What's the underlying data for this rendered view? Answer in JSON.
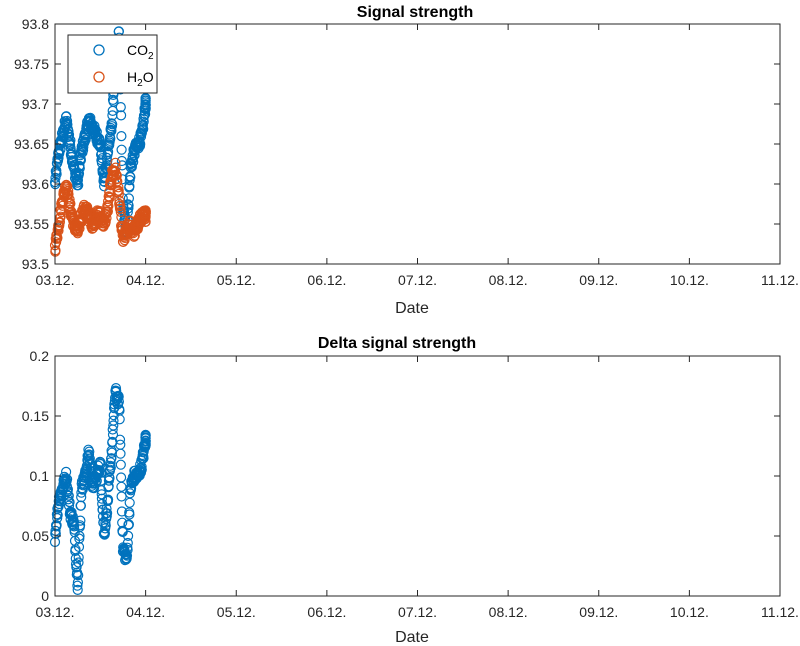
{
  "chart_data": [
    {
      "type": "scatter",
      "title": "Signal strength",
      "xlabel": "Date",
      "ylabel": "",
      "x_ticks": [
        "03.12.",
        "04.12.",
        "05.12.",
        "06.12.",
        "07.12.",
        "08.12.",
        "09.12.",
        "10.12.",
        "11.12."
      ],
      "xlim": [
        "03.12.",
        "11.12."
      ],
      "ylim": [
        93.5,
        93.8
      ],
      "y_ticks": [
        "93.5",
        "93.55",
        "93.6",
        "93.65",
        "93.7",
        "93.75",
        "93.8"
      ],
      "grid": false,
      "legend_position": "top-left",
      "colors": {
        "CO2": "#0072BD",
        "H2O": "#D95319"
      },
      "legend": [
        {
          "main": "CO",
          "sub": "2",
          "tail": ""
        },
        {
          "main": "H",
          "sub": "2",
          "tail": "O"
        }
      ],
      "series": [
        {
          "name": "CO2",
          "x": [
            "03.12. 00:00",
            "03.12. 01:00",
            "03.12. 02:00",
            "03.12. 03:00",
            "03.12. 04:00",
            "03.12. 05:00",
            "03.12. 06:00",
            "03.12. 07:00",
            "03.12. 08:00",
            "03.12. 09:00",
            "03.12. 10:00",
            "03.12. 11:00",
            "03.12. 12:00",
            "03.12. 13:00",
            "03.12. 14:00",
            "03.12. 15:00",
            "03.12. 16:00",
            "03.12. 17:00",
            "03.12. 18:00",
            "03.12. 19:00",
            "03.12. 20:00",
            "03.12. 21:00",
            "03.12. 22:00",
            "03.12. 23:00",
            "04.12. 00:00"
          ],
          "y": [
            93.6,
            93.64,
            93.66,
            93.68,
            93.65,
            93.62,
            93.6,
            93.64,
            93.66,
            93.68,
            93.67,
            93.66,
            93.65,
            93.6,
            93.64,
            93.67,
            93.75,
            93.79,
            93.57,
            93.54,
            93.62,
            93.64,
            93.65,
            93.66,
            93.7
          ]
        },
        {
          "name": "H2O",
          "x": [
            "03.12. 00:00",
            "03.12. 01:00",
            "03.12. 02:00",
            "03.12. 03:00",
            "03.12. 04:00",
            "03.12. 05:00",
            "03.12. 06:00",
            "03.12. 07:00",
            "03.12. 08:00",
            "03.12. 09:00",
            "03.12. 10:00",
            "03.12. 11:00",
            "03.12. 12:00",
            "03.12. 13:00",
            "03.12. 14:00",
            "03.12. 15:00",
            "03.12. 16:00",
            "03.12. 17:00",
            "03.12. 18:00",
            "03.12. 19:00",
            "03.12. 20:00",
            "03.12. 21:00",
            "03.12. 22:00",
            "03.12. 23:00",
            "04.12. 00:00"
          ],
          "y": [
            93.52,
            93.55,
            93.58,
            93.6,
            93.57,
            93.55,
            93.54,
            93.56,
            93.57,
            93.56,
            93.55,
            93.56,
            93.56,
            93.55,
            93.57,
            93.61,
            93.62,
            93.58,
            93.53,
            93.54,
            93.55,
            93.54,
            93.55,
            93.56,
            93.56
          ]
        }
      ]
    },
    {
      "type": "scatter",
      "title": "Delta signal strength",
      "xlabel": "Date",
      "ylabel": "",
      "x_ticks": [
        "03.12.",
        "04.12.",
        "05.12.",
        "06.12.",
        "07.12.",
        "08.12.",
        "09.12.",
        "10.12.",
        "11.12."
      ],
      "xlim": [
        "03.12.",
        "11.12."
      ],
      "ylim": [
        0,
        0.2
      ],
      "y_ticks": [
        "0",
        "0.05",
        "0.1",
        "0.15",
        "0.2"
      ],
      "grid": false,
      "colors": {
        "delta": "#0072BD"
      },
      "series": [
        {
          "x": [
            "03.12. 00:00",
            "03.12. 01:00",
            "03.12. 02:00",
            "03.12. 03:00",
            "03.12. 04:00",
            "03.12. 05:00",
            "03.12. 06:00",
            "03.12. 07:00",
            "03.12. 08:00",
            "03.12. 09:00",
            "03.12. 10:00",
            "03.12. 11:00",
            "03.12. 12:00",
            "03.12. 13:00",
            "03.12. 14:00",
            "03.12. 15:00",
            "03.12. 16:00",
            "03.12. 17:00",
            "03.12. 18:00",
            "03.12. 19:00",
            "03.12. 20:00",
            "03.12. 21:00",
            "03.12. 22:00",
            "03.12. 23:00",
            "04.12. 00:00"
          ],
          "y": [
            0.05,
            0.08,
            0.09,
            0.1,
            0.07,
            0.06,
            0.01,
            0.09,
            0.1,
            0.12,
            0.09,
            0.1,
            0.11,
            0.05,
            0.08,
            0.12,
            0.17,
            0.16,
            0.04,
            0.03,
            0.09,
            0.1,
            0.1,
            0.11,
            0.13
          ]
        }
      ]
    }
  ]
}
